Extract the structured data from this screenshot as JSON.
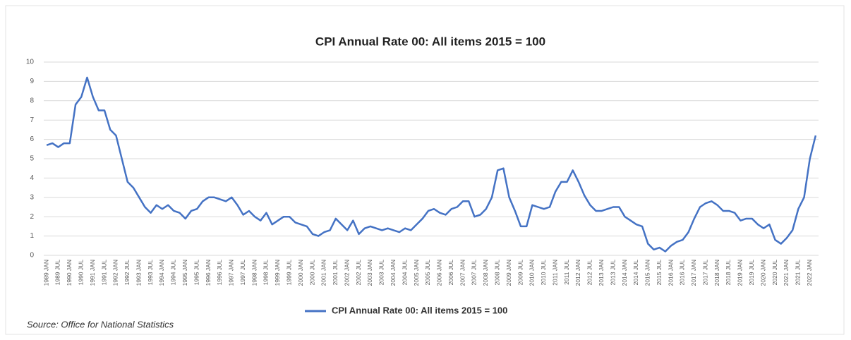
{
  "chart_data": {
    "type": "line",
    "title": "CPI Annual Rate 00:  All items 2015 = 100",
    "source": "Source: Office for National Statistics",
    "categories": [
      "1989 JAN",
      null,
      "1989 JUL",
      null,
      "1990 JAN",
      null,
      "1990 JUL",
      null,
      "1991 JAN",
      null,
      "1991 JUL",
      null,
      "1992 JAN",
      null,
      "1992 JUL",
      null,
      "1993 JAN",
      null,
      "1993 JUL",
      null,
      "1994 JAN",
      null,
      "1994 JUL",
      null,
      "1995 JAN",
      null,
      "1995 JUL",
      null,
      "1996 JAN",
      null,
      "1996 JUL",
      null,
      "1997 JAN",
      null,
      "1997 JUL",
      null,
      "1998 JAN",
      null,
      "1998 JUL",
      null,
      "1999 JAN",
      null,
      "1999 JUL",
      null,
      "2000 JAN",
      null,
      "2000 JUL",
      null,
      "2001 JAN",
      null,
      "2001 JUL",
      null,
      "2002 JAN",
      null,
      "2002 JUL",
      null,
      "2003 JAN",
      null,
      "2003 JUL",
      null,
      "2004 JAN",
      null,
      "2004 JUL",
      null,
      "2005 JAN",
      null,
      "2005 JUL",
      null,
      "2006 JAN",
      null,
      "2006 JUL",
      null,
      "2007 JAN",
      null,
      "2007 JUL",
      null,
      "2008 JAN",
      null,
      "2008 JUL",
      null,
      "2009 JAN",
      null,
      "2009 JUL",
      null,
      "2010 JAN",
      null,
      "2010 JUL",
      null,
      "2011 JAN",
      null,
      "2011 JUL",
      null,
      "2012 JAN",
      null,
      "2012 JUL",
      null,
      "2013 JAN",
      null,
      "2013 JUL",
      null,
      "2014 JAN",
      null,
      "2014 JUL",
      null,
      "2015 JAN",
      null,
      "2015 JUL",
      null,
      "2016 JAN",
      null,
      "2016 JUL",
      null,
      "2017 JAN",
      null,
      "2017 JUL",
      null,
      "2018 JAN",
      null,
      "2018 JUL",
      null,
      "2019 JAN",
      null,
      "2019 JUL",
      null,
      "2020 JAN",
      null,
      "2020 JUL",
      null,
      "2021 JAN",
      null,
      "2021 JUL",
      null,
      "2022 JAN",
      null
    ],
    "series": [
      {
        "name": "CPI Annual Rate 00:  All items 2015 = 100",
        "color": "#4472c4",
        "values": [
          5.7,
          5.8,
          5.6,
          5.8,
          5.8,
          7.8,
          8.2,
          9.2,
          8.2,
          7.5,
          7.5,
          6.5,
          6.2,
          5.0,
          3.8,
          3.5,
          3.0,
          2.5,
          2.2,
          2.6,
          2.4,
          2.6,
          2.3,
          2.2,
          1.9,
          2.3,
          2.4,
          2.8,
          3.0,
          3.0,
          2.9,
          2.8,
          3.0,
          2.6,
          2.1,
          2.3,
          2.0,
          1.8,
          2.2,
          1.6,
          1.8,
          2.0,
          2.0,
          1.7,
          1.6,
          1.5,
          1.1,
          1.0,
          1.2,
          1.3,
          1.9,
          1.6,
          1.3,
          1.8,
          1.1,
          1.4,
          1.5,
          1.4,
          1.3,
          1.4,
          1.3,
          1.2,
          1.4,
          1.3,
          1.6,
          1.9,
          2.3,
          2.4,
          2.2,
          2.1,
          2.4,
          2.5,
          2.8,
          2.8,
          2.0,
          2.1,
          2.4,
          3.0,
          4.4,
          4.5,
          3.0,
          2.3,
          1.5,
          1.5,
          2.6,
          2.5,
          2.4,
          2.5,
          3.3,
          3.8,
          3.8,
          4.4,
          3.8,
          3.1,
          2.6,
          2.3,
          2.3,
          2.4,
          2.5,
          2.5,
          2.0,
          1.8,
          1.6,
          1.5,
          0.6,
          0.3,
          0.4,
          0.2,
          0.5,
          0.7,
          0.8,
          1.2,
          1.9,
          2.5,
          2.7,
          2.8,
          2.6,
          2.3,
          2.3,
          2.2,
          1.8,
          1.9,
          1.9,
          1.6,
          1.4,
          1.6,
          0.8,
          0.6,
          0.9,
          1.3,
          2.4,
          3.0,
          5.0,
          6.2
        ]
      }
    ],
    "ylim": [
      0,
      10
    ],
    "yticks": [
      0,
      1,
      2,
      3,
      4,
      5,
      6,
      7,
      8,
      9,
      10
    ],
    "grid": true,
    "legend": "bottom"
  }
}
